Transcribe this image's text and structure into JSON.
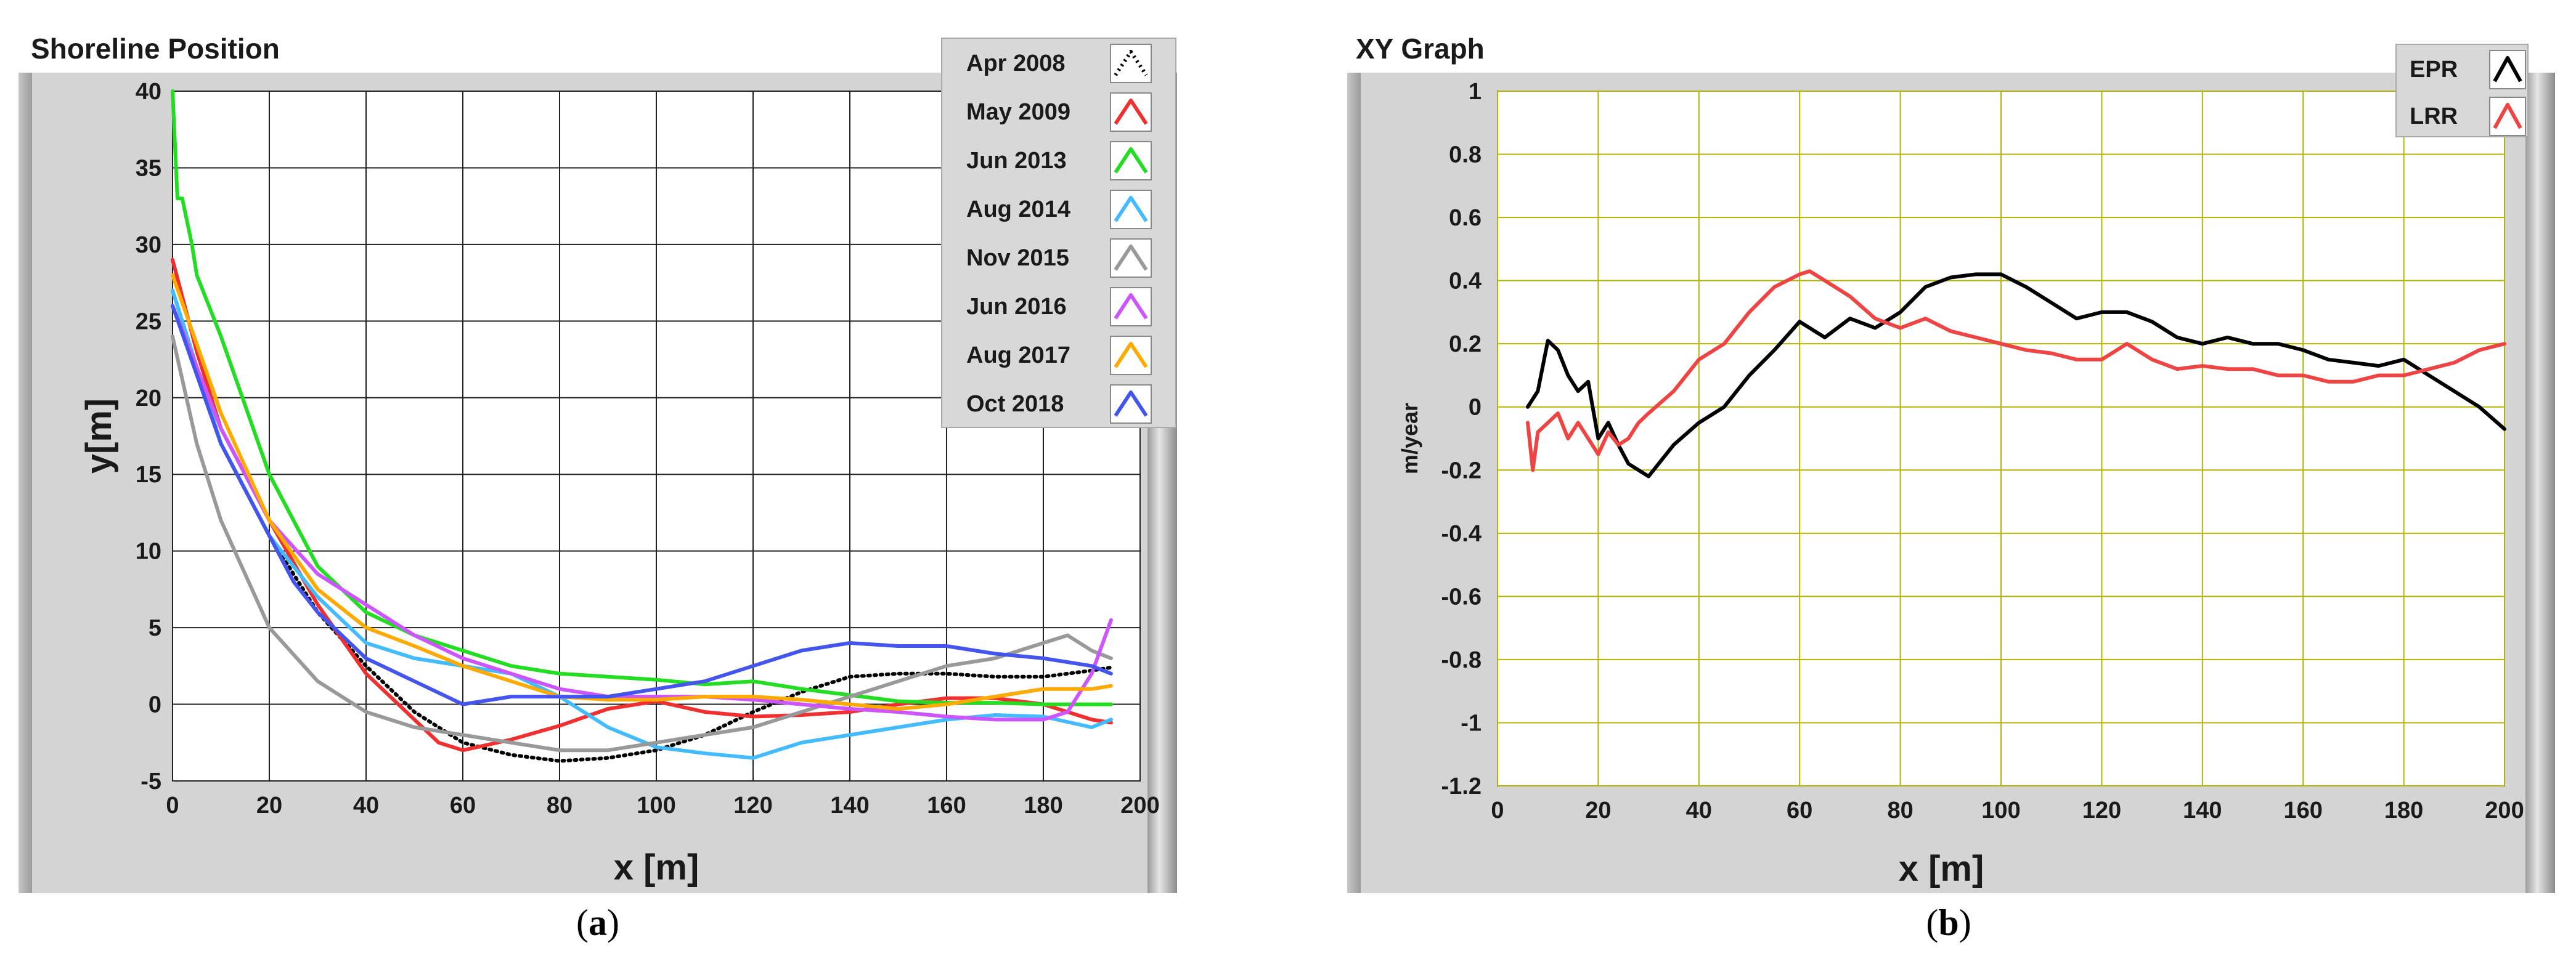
{
  "chart_data": [
    {
      "type": "line",
      "title": "Shoreline Position",
      "xlabel": "x [m]",
      "ylabel": "y[m]",
      "xlim": [
        0,
        200
      ],
      "ylim": [
        -5,
        40
      ],
      "xticks": [
        0,
        20,
        40,
        60,
        80,
        100,
        120,
        140,
        160,
        180,
        200
      ],
      "yticks": [
        40,
        35,
        30,
        25,
        20,
        15,
        10,
        5,
        0,
        -5
      ],
      "grid": true,
      "legend_position": "top-right",
      "caption": "a",
      "series": [
        {
          "name": "Apr 2008",
          "color": "#000000",
          "dash": "dotted",
          "x": [
            0,
            5,
            10,
            20,
            30,
            40,
            50,
            60,
            70,
            80,
            90,
            100,
            110,
            120,
            130,
            140,
            150,
            160,
            170,
            180,
            190,
            194
          ],
          "y": [
            27,
            22,
            17,
            11,
            6,
            2.5,
            -0.5,
            -2.5,
            -3.3,
            -3.7,
            -3.5,
            -3,
            -2,
            -0.5,
            0.8,
            1.8,
            2,
            2,
            1.8,
            1.8,
            2.2,
            2.4
          ]
        },
        {
          "name": "May 2009",
          "color": "#f03030",
          "dash": "solid",
          "x": [
            0,
            5,
            10,
            20,
            30,
            40,
            50,
            55,
            60,
            70,
            80,
            90,
            100,
            110,
            120,
            130,
            140,
            150,
            160,
            170,
            180,
            190,
            194
          ],
          "y": [
            29,
            23,
            18,
            12,
            6.5,
            2,
            -1,
            -2.5,
            -3,
            -2.3,
            -1.4,
            -0.3,
            0.2,
            -0.5,
            -0.8,
            -0.7,
            -0.5,
            0,
            0.4,
            0.4,
            0,
            -1,
            -1.2
          ]
        },
        {
          "name": "Jun 2013",
          "color": "#22dd22",
          "dash": "solid",
          "x": [
            0,
            1,
            2,
            4,
            5,
            10,
            20,
            30,
            40,
            50,
            60,
            70,
            80,
            90,
            100,
            110,
            120,
            130,
            140,
            150,
            160,
            170,
            180,
            190,
            194
          ],
          "y": [
            40,
            33,
            33,
            30,
            28,
            24,
            15,
            9,
            6,
            4.5,
            3.5,
            2.5,
            2,
            1.8,
            1.6,
            1.3,
            1.5,
            1,
            0.6,
            0.2,
            0.1,
            0.1,
            0,
            0,
            0
          ]
        },
        {
          "name": "Aug 2014",
          "color": "#44bbff",
          "dash": "solid",
          "x": [
            0,
            10,
            20,
            30,
            40,
            50,
            60,
            70,
            80,
            90,
            100,
            110,
            120,
            130,
            140,
            150,
            160,
            170,
            180,
            190,
            194
          ],
          "y": [
            27,
            17,
            11,
            7,
            4,
            3,
            2.5,
            2,
            0.5,
            -1.5,
            -2.8,
            -3.2,
            -3.5,
            -2.5,
            -2,
            -1.5,
            -1,
            -0.7,
            -0.8,
            -1.5,
            -1
          ]
        },
        {
          "name": "Nov 2015",
          "color": "#999999",
          "dash": "solid",
          "x": [
            0,
            5,
            10,
            20,
            30,
            40,
            50,
            60,
            70,
            80,
            90,
            100,
            110,
            120,
            130,
            140,
            150,
            160,
            170,
            180,
            185,
            190,
            194
          ],
          "y": [
            24,
            17,
            12,
            5,
            1.5,
            -0.5,
            -1.5,
            -2,
            -2.5,
            -3,
            -3,
            -2.5,
            -2,
            -1.5,
            -0.5,
            0.5,
            1.5,
            2.5,
            3,
            4,
            4.5,
            3.5,
            3
          ]
        },
        {
          "name": "Jun 2016",
          "color": "#cc55ff",
          "dash": "solid",
          "x": [
            0,
            10,
            20,
            30,
            40,
            50,
            60,
            70,
            80,
            90,
            100,
            110,
            120,
            130,
            140,
            150,
            160,
            170,
            180,
            185,
            190,
            194
          ],
          "y": [
            26,
            18,
            12,
            8.5,
            6.5,
            4.5,
            3,
            2,
            1,
            0.5,
            0.5,
            0.5,
            0.3,
            0,
            -0.3,
            -0.5,
            -0.8,
            -1,
            -1,
            -0.5,
            2,
            5.5
          ]
        },
        {
          "name": "Aug 2017",
          "color": "#ffaa00",
          "dash": "solid",
          "x": [
            0,
            10,
            20,
            30,
            40,
            50,
            60,
            70,
            80,
            90,
            100,
            110,
            120,
            130,
            140,
            150,
            160,
            170,
            180,
            190,
            194
          ],
          "y": [
            28,
            19,
            12,
            7.5,
            5,
            3.8,
            2.5,
            1.5,
            0.5,
            0.3,
            0.3,
            0.5,
            0.5,
            0.3,
            0,
            -0.3,
            0,
            0.5,
            1,
            1,
            1.2
          ]
        },
        {
          "name": "Oct 2018",
          "color": "#4455ee",
          "dash": "solid",
          "x": [
            0,
            10,
            20,
            25,
            30,
            40,
            50,
            60,
            70,
            80,
            90,
            100,
            110,
            120,
            130,
            140,
            150,
            160,
            170,
            180,
            190,
            194
          ],
          "y": [
            26,
            17,
            11,
            8,
            6,
            3,
            1.5,
            0,
            0.5,
            0.5,
            0.5,
            1,
            1.5,
            2.5,
            3.5,
            4,
            3.8,
            3.8,
            3.3,
            3,
            2.5,
            2
          ]
        }
      ]
    },
    {
      "type": "line",
      "title": "XY Graph",
      "xlabel": "x [m]",
      "ylabel": "m/year",
      "xlim": [
        0,
        200
      ],
      "ylim": [
        -1.2,
        1
      ],
      "xticks": [
        0,
        20,
        40,
        60,
        80,
        100,
        120,
        140,
        160,
        180,
        200
      ],
      "yticks": [
        1,
        0.8,
        0.6,
        0.4,
        0.2,
        0,
        -0.2,
        -0.4,
        -0.6,
        -0.8,
        -1,
        -1.2
      ],
      "grid": true,
      "legend_position": "top-right",
      "caption": "b",
      "series": [
        {
          "name": "EPR",
          "color": "#000000",
          "dash": "solid",
          "x": [
            6,
            8,
            10,
            12,
            14,
            16,
            18,
            20,
            22,
            24,
            26,
            28,
            30,
            32,
            35,
            40,
            45,
            50,
            55,
            60,
            65,
            70,
            75,
            80,
            85,
            90,
            95,
            100,
            105,
            110,
            115,
            120,
            125,
            130,
            135,
            140,
            145,
            150,
            155,
            160,
            165,
            170,
            175,
            180,
            185,
            190,
            195,
            200
          ],
          "y": [
            0,
            0.05,
            0.21,
            0.18,
            0.1,
            0.05,
            0.08,
            -0.1,
            -0.05,
            -0.12,
            -0.18,
            -0.2,
            -0.22,
            -0.18,
            -0.12,
            -0.05,
            0,
            0.1,
            0.18,
            0.27,
            0.22,
            0.28,
            0.25,
            0.3,
            0.38,
            0.41,
            0.42,
            0.42,
            0.38,
            0.33,
            0.28,
            0.3,
            0.3,
            0.27,
            0.22,
            0.2,
            0.22,
            0.2,
            0.2,
            0.18,
            0.15,
            0.14,
            0.13,
            0.15,
            0.1,
            0.05,
            0,
            -0.07
          ]
        },
        {
          "name": "LRR",
          "color": "#ee4444",
          "dash": "solid",
          "x": [
            6,
            7,
            8,
            10,
            12,
            14,
            16,
            18,
            20,
            22,
            24,
            26,
            28,
            30,
            35,
            40,
            45,
            50,
            55,
            60,
            62,
            65,
            70,
            75,
            80,
            85,
            90,
            95,
            100,
            105,
            110,
            115,
            120,
            125,
            130,
            135,
            140,
            145,
            150,
            155,
            160,
            165,
            170,
            175,
            180,
            185,
            190,
            195,
            200
          ],
          "y": [
            -0.05,
            -0.2,
            -0.08,
            -0.05,
            -0.02,
            -0.1,
            -0.05,
            -0.1,
            -0.15,
            -0.08,
            -0.12,
            -0.1,
            -0.05,
            -0.02,
            0.05,
            0.15,
            0.2,
            0.3,
            0.38,
            0.42,
            0.43,
            0.4,
            0.35,
            0.28,
            0.25,
            0.28,
            0.24,
            0.22,
            0.2,
            0.18,
            0.17,
            0.15,
            0.15,
            0.2,
            0.15,
            0.12,
            0.13,
            0.12,
            0.12,
            0.1,
            0.1,
            0.08,
            0.08,
            0.1,
            0.1,
            0.12,
            0.14,
            0.18,
            0.2
          ]
        }
      ]
    }
  ]
}
